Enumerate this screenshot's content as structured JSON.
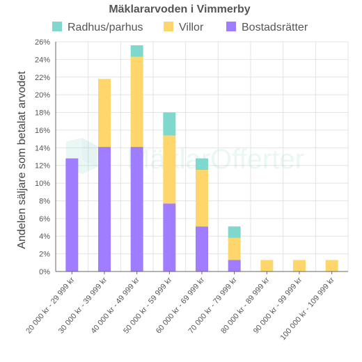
{
  "chart_data": {
    "type": "bar",
    "stacked": true,
    "title": "Mäklararvoden i Vimmerby",
    "xlabel": "",
    "ylabel": "Andelen säljare som betalat arvodet",
    "ylim": [
      0,
      26
    ],
    "y_tick_step": 2,
    "y_tick_suffix": "%",
    "grid": true,
    "legend_position": "top",
    "categories": [
      "20 000 kr - 29 999 kr",
      "30 000 kr - 39 999 kr",
      "40 000 kr - 49 999 kr",
      "50 000 kr - 59 999 kr",
      "60 000 kr - 69 999 kr",
      "70 000 kr - 79 999 kr",
      "80 000 kr - 89 999 kr",
      "90 000 kr - 99 999 kr",
      "100 000 kr - 109 999 kr"
    ],
    "series": [
      {
        "name": "Bostadsrätter",
        "color": "#a07cff",
        "values": [
          12.8,
          14.1,
          14.1,
          7.7,
          5.1,
          1.3,
          0,
          0,
          0
        ]
      },
      {
        "name": "Villor",
        "color": "#ffd66b",
        "values": [
          0,
          7.7,
          10.2,
          7.7,
          6.4,
          2.5,
          1.3,
          1.3,
          1.3
        ]
      },
      {
        "name": "Radhus/parhus",
        "color": "#7fd8cd",
        "values": [
          0,
          0,
          1.3,
          2.6,
          1.3,
          1.3,
          0,
          0,
          0
        ]
      }
    ],
    "legend_order": [
      "Radhus/parhus",
      "Villor",
      "Bostadsrätter"
    ]
  },
  "watermark": {
    "text": "MäklarOfferter",
    "icon": "maklarofferter-logo-icon"
  }
}
